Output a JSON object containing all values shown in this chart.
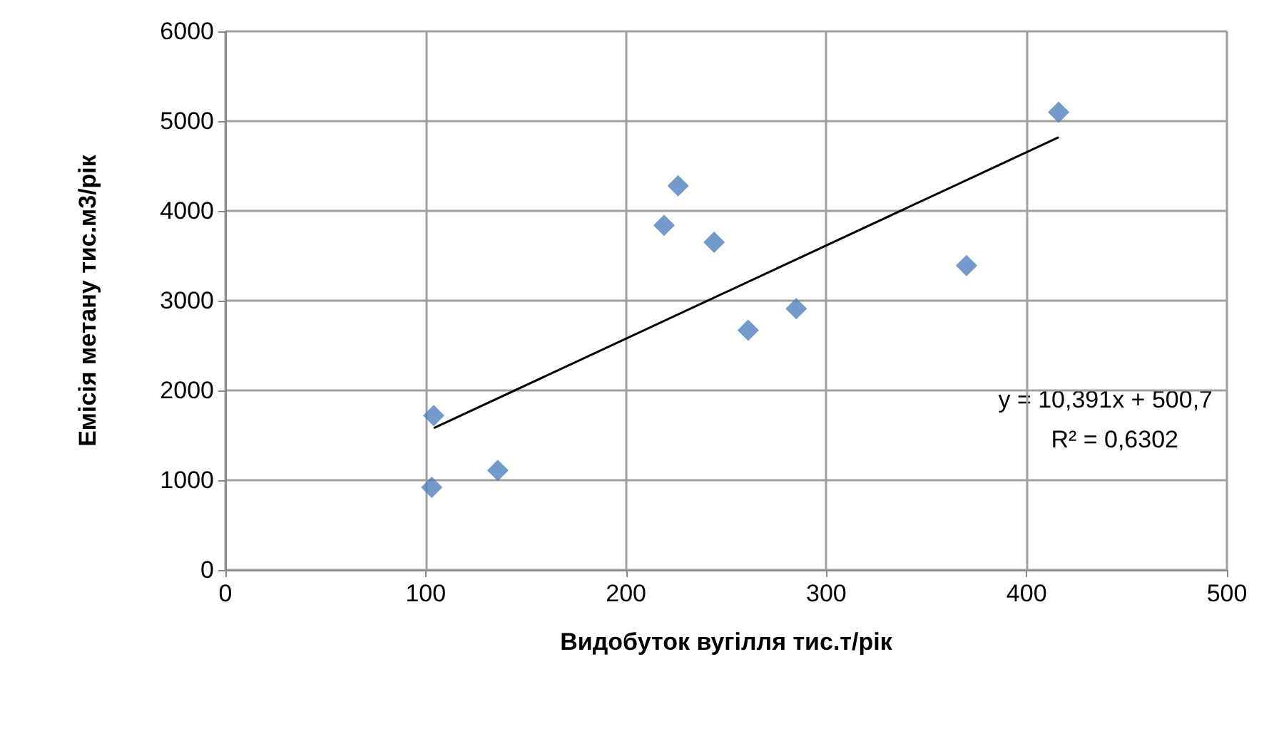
{
  "chart_data": {
    "type": "scatter",
    "xlabel": "Видобуток вугілля тис.т/рік",
    "ylabel": "Емісія метану тис.м3/рік",
    "x": [
      104,
      103,
      136,
      219,
      226,
      244,
      261,
      285,
      370,
      416
    ],
    "series": [
      {
        "color": "#4f81bd",
        "marker": "diamond",
        "values": [
          1720,
          920,
          1110,
          3840,
          4280,
          3650,
          2670,
          2910,
          3390,
          5100
        ]
      },
      {
        "type": "line",
        "color": "#000000",
        "marker": "none",
        "x": [
          104,
          416
        ],
        "values": [
          1580,
          4820
        ]
      }
    ],
    "annotations": [
      "y = 10,391x + 500,7",
      "R² = 0,6302"
    ],
    "xlim": [
      0,
      500
    ],
    "xticks": [
      0,
      100,
      200,
      300,
      400,
      500
    ],
    "ylim": [
      0,
      6000
    ],
    "yticks": [
      0,
      1000,
      2000,
      3000,
      4000,
      5000,
      6000
    ],
    "grid": true
  }
}
